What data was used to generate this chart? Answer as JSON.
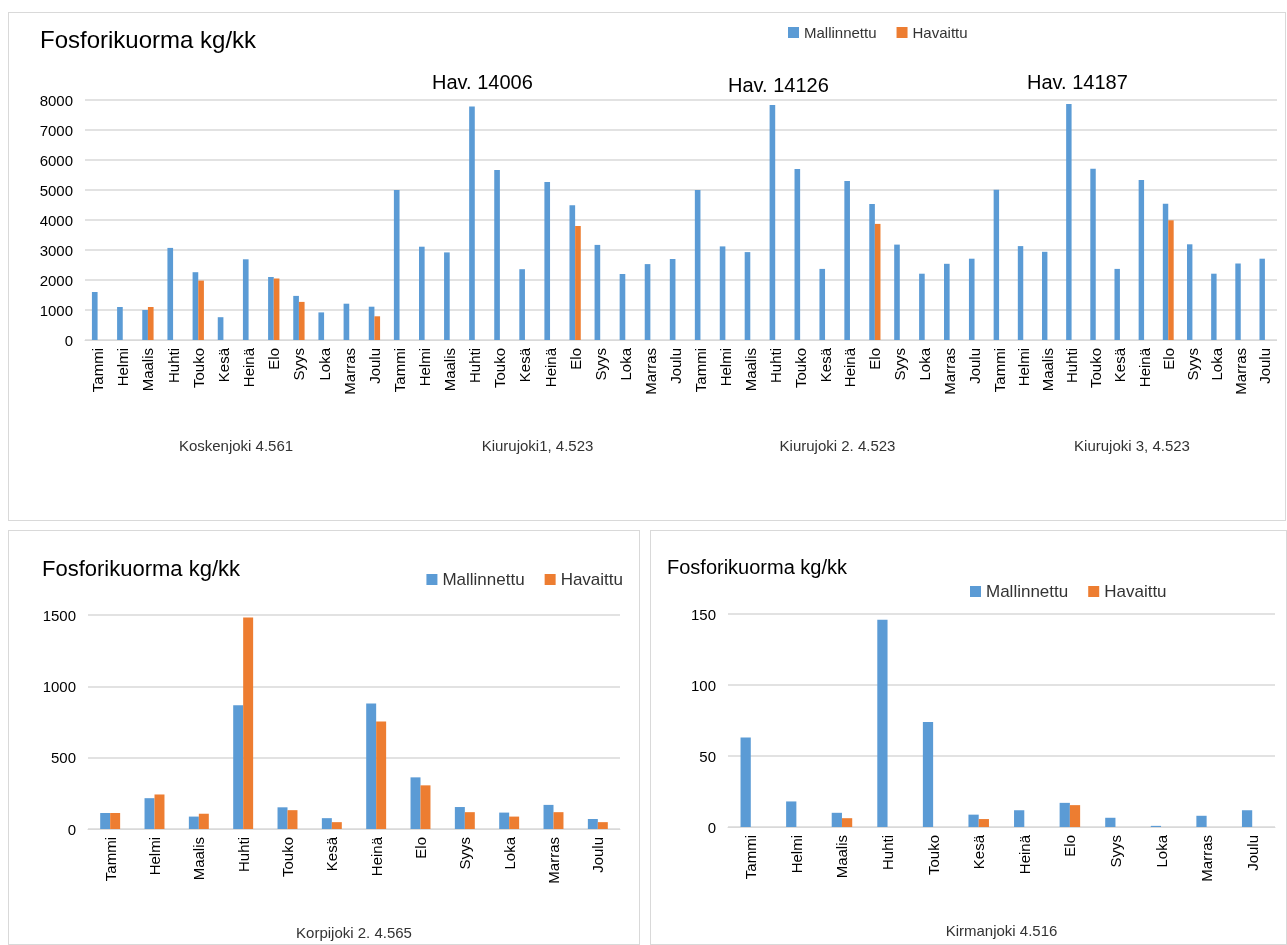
{
  "chart_data": [
    {
      "type": "bar",
      "title": "Fosforikuorma kg/kk",
      "xlabel": "Koskenjoki 4.561",
      "categories": [
        "Tammi",
        "Helmi",
        "Maalis",
        "Huhti",
        "Touko",
        "Kesä",
        "Heinä",
        "Elo",
        "Syys",
        "Loka",
        "Marras",
        "Joulu"
      ],
      "series": [
        {
          "color": "#5b9bd5",
          "values": [
            1600,
            1100,
            1000,
            3070,
            2260,
            760,
            2690,
            2100,
            1470,
            920,
            1210,
            1110
          ]
        },
        {
          "color": "#ed7d31",
          "values": [
            null,
            null,
            1100,
            null,
            1980,
            null,
            null,
            2050,
            1270,
            null,
            null,
            790
          ]
        }
      ],
      "ylim": [
        0,
        8000
      ],
      "yticks": [
        0,
        1000,
        2000,
        3000,
        4000,
        5000,
        6000,
        7000,
        8000
      ],
      "grid": "y"
    },
    {
      "type": "bar",
      "xlabel": "Kiurujoki1, 4.523",
      "categories": [
        "Tammi",
        "Helmi",
        "Maalis",
        "Huhti",
        "Touko",
        "Kesä",
        "Heinä",
        "Elo",
        "Syys",
        "Loka",
        "Marras",
        "Joulu"
      ],
      "series": [
        {
          "color": "#5b9bd5",
          "values": [
            5000,
            3110,
            2920,
            7780,
            5670,
            2360,
            5270,
            4490,
            3170,
            2200,
            2530,
            2700
          ]
        },
        {
          "color": "#ed7d31",
          "values": [
            null,
            null,
            null,
            null,
            null,
            null,
            null,
            3800,
            null,
            null,
            null,
            null
          ]
        }
      ],
      "annotations": [
        "Hav. 14006"
      ],
      "ylim": [
        0,
        8000
      ],
      "yticks": [
        0,
        1000,
        2000,
        3000,
        4000,
        5000,
        6000,
        7000,
        8000
      ],
      "grid": "y",
      "tick_labels": "x"
    },
    {
      "type": "bar",
      "xlabel": "Kiurujoki 2. 4.523",
      "categories": [
        "Tammi",
        "Helmi",
        "Maalis",
        "Huhti",
        "Touko",
        "Kesä",
        "Heinä",
        "Elo",
        "Syys",
        "Loka",
        "Marras",
        "Joulu"
      ],
      "series": [
        {
          "name": "Mallinnettu",
          "color": "#5b9bd5",
          "values": [
            5000,
            3120,
            2930,
            7830,
            5700,
            2370,
            5300,
            4530,
            3180,
            2210,
            2540,
            2710
          ]
        },
        {
          "name": "Havaittu",
          "color": "#ed7d31",
          "values": [
            null,
            null,
            null,
            null,
            null,
            null,
            null,
            3870,
            null,
            null,
            null,
            null
          ]
        }
      ],
      "annotations": [
        "Hav. 14126"
      ],
      "ylim": [
        0,
        8000
      ],
      "yticks": [
        0,
        1000,
        2000,
        3000,
        4000,
        5000,
        6000,
        7000,
        8000
      ],
      "grid": "y",
      "tick_labels": "x",
      "legend": "top"
    },
    {
      "type": "bar",
      "xlabel": "Kiurujoki 3, 4.523",
      "categories": [
        "Tammi",
        "Helmi",
        "Maalis",
        "Huhti",
        "Touko",
        "Kesä",
        "Heinä",
        "Elo",
        "Syys",
        "Loka",
        "Marras",
        "Joulu"
      ],
      "series": [
        {
          "color": "#5b9bd5",
          "values": [
            5010,
            3130,
            2940,
            7870,
            5710,
            2370,
            5330,
            4540,
            3190,
            2210,
            2550,
            2710
          ]
        },
        {
          "color": "#ed7d31",
          "values": [
            null,
            null,
            null,
            null,
            null,
            null,
            null,
            3990,
            null,
            null,
            null,
            null
          ]
        }
      ],
      "annotations": [
        "Hav. 14187"
      ],
      "ylim": [
        0,
        8000
      ],
      "yticks": [
        0,
        1000,
        2000,
        3000,
        4000,
        5000,
        6000,
        7000,
        8000
      ],
      "grid": "y",
      "tick_labels": "x"
    },
    {
      "type": "bar",
      "title": "Fosforikuorma kg/kk",
      "xlabel": "Korpijoki 2. 4.565",
      "categories": [
        "Tammi",
        "Helmi",
        "Maalis",
        "Huhti",
        "Touko",
        "Kesä",
        "Heinä",
        "Elo",
        "Syys",
        "Loka",
        "Marras",
        "Joulu"
      ],
      "series": [
        {
          "name": "Mallinnettu",
          "color": "#5b9bd5",
          "values": [
            112,
            216,
            87,
            868,
            152,
            76,
            879,
            362,
            154,
            115,
            169,
            70
          ]
        },
        {
          "name": "Havaittu",
          "color": "#ed7d31",
          "values": [
            112,
            242,
            107,
            1483,
            132,
            48,
            753,
            306,
            118,
            87,
            118,
            48
          ]
        }
      ],
      "ylim": [
        0,
        1500
      ],
      "yticks": [
        0,
        500,
        1000,
        1500
      ],
      "grid": "y",
      "legend": "top right"
    },
    {
      "type": "bar",
      "title": "Fosforikuorma kg/kk",
      "xlabel": "Kirmanjoki 4.516",
      "categories": [
        "Tammi",
        "Helmi",
        "Maalis",
        "Huhti",
        "Touko",
        "Kesä",
        "Heinä",
        "Elo",
        "Syys",
        "Loka",
        "Marras",
        "Joulu"
      ],
      "series": [
        {
          "name": "Mallinnettu",
          "color": "#5b9bd5",
          "values": [
            63,
            18,
            10,
            146,
            74,
            8.7,
            11.8,
            17,
            6.5,
            0.8,
            7.9,
            11.8
          ]
        },
        {
          "name": "Havaittu",
          "color": "#ed7d31",
          "values": [
            null,
            null,
            6.2,
            null,
            null,
            5.6,
            null,
            15.4,
            null,
            null,
            null,
            null
          ]
        }
      ],
      "ylim": [
        0,
        150
      ],
      "yticks": [
        0,
        50,
        100,
        150
      ],
      "grid": "y",
      "legend": "top right"
    }
  ]
}
